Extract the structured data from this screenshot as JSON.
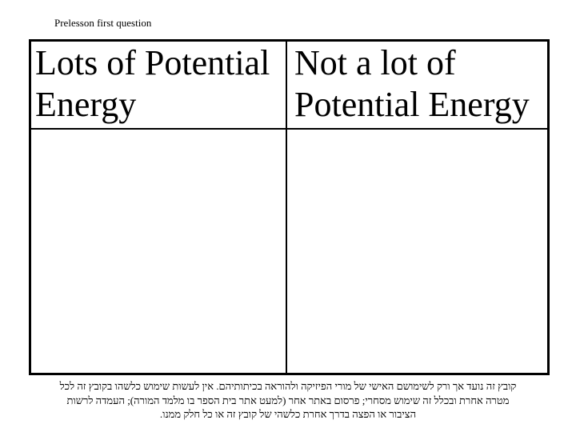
{
  "page": {
    "background_color": "#ffffff",
    "text_color": "#000000",
    "border_color": "#000000"
  },
  "pretitle": "Prelesson first question",
  "table": {
    "columns": [
      {
        "header": "Lots of Potential Energy"
      },
      {
        "header": "Not a lot of Potential Energy"
      }
    ],
    "body_cells": [
      "",
      ""
    ]
  },
  "footer": {
    "lang": "he",
    "direction": "rtl",
    "lines": [
      "קובץ זה נועד אך ורק לשימושם האישי של מורי הפיזיקה ולהוראה בכיתותיהם. אין לעשות שימוש כלשהו בקובץ זה לכל",
      "מטרה אחרת ובכלל זה שימוש מסחרי; פרסום באתר אחר (למעט אתר בית הספר בו מלמד המורה); העמדה לרשות",
      "הציבור או הפצה בדרך אחרת כלשהי של קובץ זה או כל חלק ממנו."
    ]
  }
}
